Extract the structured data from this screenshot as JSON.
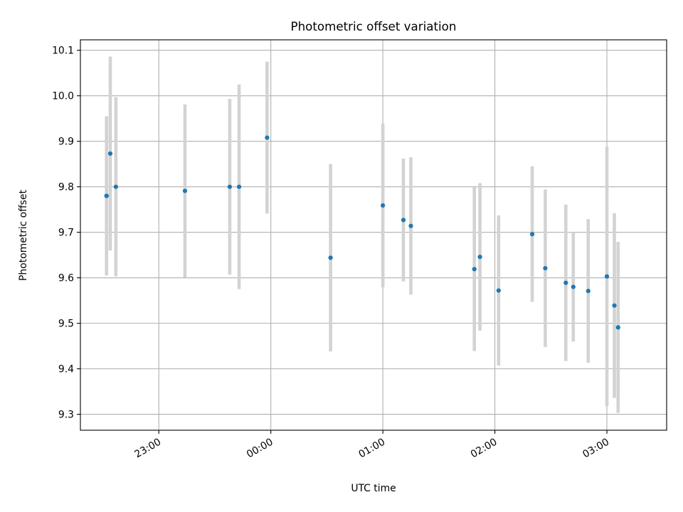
{
  "chart_data": {
    "type": "scatter",
    "title": "Photometric offset variation",
    "xlabel": "UTC time",
    "ylabel": "Photometric offset",
    "x_is_time": true,
    "xlim": [
      "22:18",
      "03:32"
    ],
    "ylim": [
      9.265,
      10.123
    ],
    "x_ticks": [
      "23:00",
      "00:00",
      "01:00",
      "02:00",
      "03:00"
    ],
    "y_ticks": [
      9.3,
      9.4,
      9.5,
      9.6,
      9.7,
      9.8,
      9.9,
      10.0,
      10.1
    ],
    "y_tick_labels": [
      "9.3",
      "9.4",
      "9.5",
      "9.6",
      "9.7",
      "9.8",
      "9.9",
      "10.0",
      "10.1"
    ],
    "grid": true,
    "colors": {
      "points": "#1f77b4",
      "errorbars": "#d3d3d3",
      "grid": "#b0b0b0"
    },
    "points": [
      {
        "time": "22:32",
        "y": 9.78,
        "err": 0.17
      },
      {
        "time": "22:32",
        "y": 9.78,
        "err": 0.175
      },
      {
        "time": "22:34",
        "y": 9.873,
        "err": 0.213
      },
      {
        "time": "22:37",
        "y": 9.8,
        "err": 0.197
      },
      {
        "time": "23:14",
        "y": 9.791,
        "err": 0.19
      },
      {
        "time": "23:38",
        "y": 9.8,
        "err": 0.193
      },
      {
        "time": "23:43",
        "y": 9.8,
        "err": 0.225
      },
      {
        "time": "23:58",
        "y": 9.908,
        "err": 0.167
      },
      {
        "time": "00:32",
        "y": 9.644,
        "err": 0.206
      },
      {
        "time": "01:00",
        "y": 9.759,
        "err": 0.18
      },
      {
        "time": "01:11",
        "y": 9.727,
        "err": 0.135
      },
      {
        "time": "01:15",
        "y": 9.714,
        "err": 0.151
      },
      {
        "time": "01:49",
        "y": 9.619,
        "err": 0.18
      },
      {
        "time": "01:52",
        "y": 9.646,
        "err": 0.162
      },
      {
        "time": "02:02",
        "y": 9.572,
        "err": 0.165
      },
      {
        "time": "02:20",
        "y": 9.696,
        "err": 0.149
      },
      {
        "time": "02:27",
        "y": 9.621,
        "err": 0.173
      },
      {
        "time": "02:38",
        "y": 9.589,
        "err": 0.172
      },
      {
        "time": "02:42",
        "y": 9.58,
        "err": 0.12
      },
      {
        "time": "02:50",
        "y": 9.571,
        "err": 0.158
      },
      {
        "time": "03:00",
        "y": 9.603,
        "err": 0.285
      },
      {
        "time": "03:04",
        "y": 9.539,
        "err": 0.203
      },
      {
        "time": "03:06",
        "y": 9.491,
        "err": 0.188
      }
    ]
  }
}
